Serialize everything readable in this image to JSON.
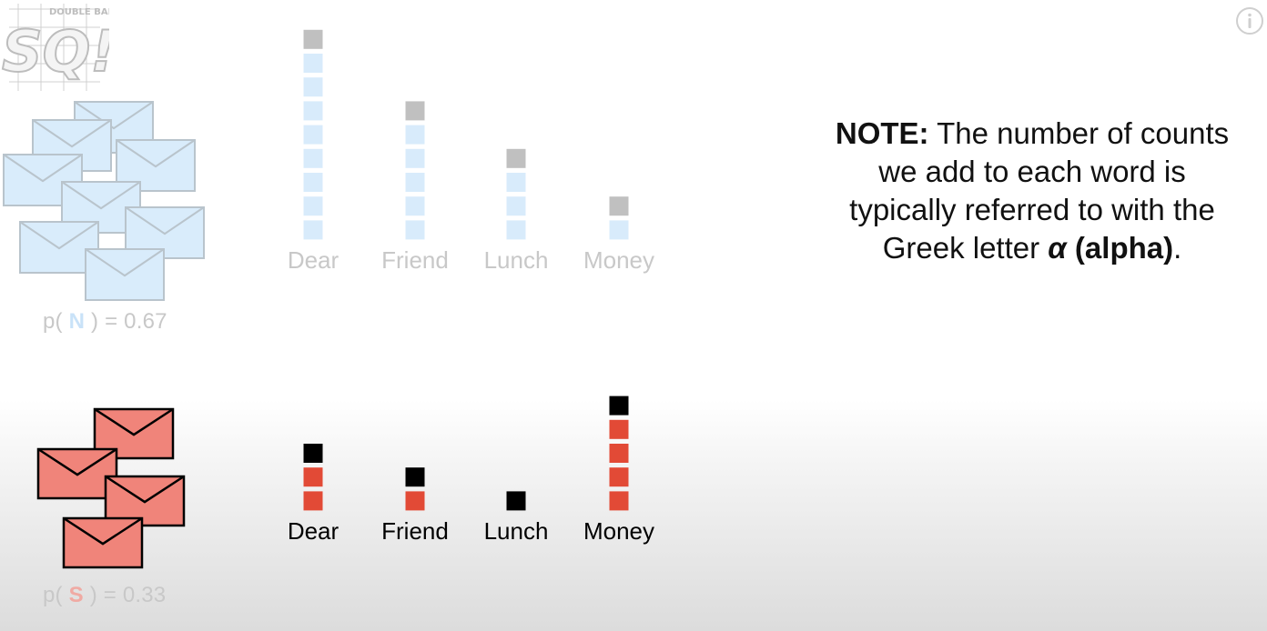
{
  "logo": {
    "text": "SQ!",
    "badge": "DOUBLE BAM!!!"
  },
  "info_icon": "info-icon",
  "colors": {
    "normal_count": "#d8ebfb",
    "normal_pseudo": "#c0c0c0",
    "spam_count": "#e24a36",
    "spam_pseudo": "#000000",
    "normal_envelope": "#d9ecfb",
    "spam_envelope": "#f0847a",
    "faded_text": "#c8c8c8"
  },
  "priors": {
    "normal": {
      "prefix": "p( ",
      "cls": "N",
      "suffix": " ) = 0.67",
      "cls_color": "#c9e2f8"
    },
    "spam": {
      "prefix": "p( ",
      "cls": "S",
      "suffix": " ) = 0.33",
      "cls_color": "#f0aaa3"
    }
  },
  "note": {
    "bold_lead": "NOTE:",
    "line1": " The number of counts",
    "line2": "we add to each word is",
    "line3": "typically referred to with the",
    "line4_pre": "Greek letter ",
    "alpha_symbol": "α",
    "alpha_word": " (alpha)",
    "period": "."
  },
  "chart_data": [
    {
      "type": "bar",
      "title": "",
      "categories": [
        "Dear",
        "Friend",
        "Lunch",
        "Money"
      ],
      "series": [
        {
          "values": [
            8,
            5,
            3,
            1
          ]
        },
        {
          "values": [
            1,
            1,
            1,
            1
          ]
        }
      ],
      "faded": true
    },
    {
      "type": "bar",
      "title": "",
      "categories": [
        "Dear",
        "Friend",
        "Lunch",
        "Money"
      ],
      "series": [
        {
          "values": [
            2,
            1,
            0,
            4
          ]
        },
        {
          "values": [
            1,
            1,
            1,
            1
          ]
        }
      ],
      "faded": false
    }
  ]
}
